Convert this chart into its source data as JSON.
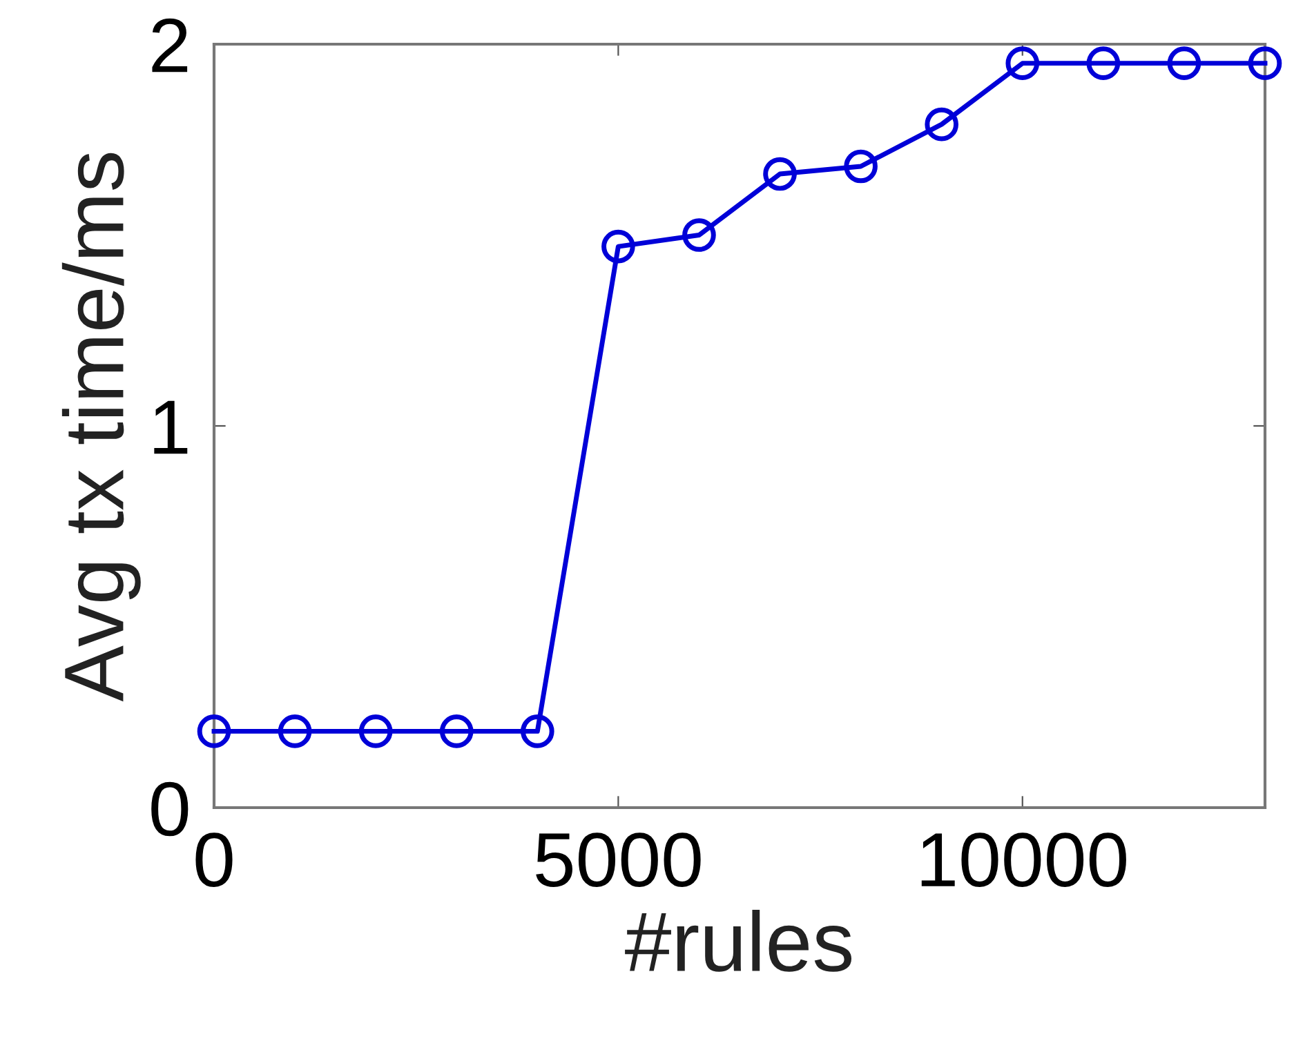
{
  "chart_data": {
    "type": "line",
    "xlabel": "#rules",
    "ylabel": "Avg tx time/ms",
    "x": [
      0,
      1000,
      2000,
      3000,
      4000,
      5000,
      6000,
      7000,
      8000,
      9000,
      10000,
      11000,
      12000,
      13000
    ],
    "series": [
      {
        "color": "#0000d8",
        "values": [
          0.2,
          0.2,
          0.2,
          0.2,
          0.2,
          1.47,
          1.5,
          1.66,
          1.68,
          1.79,
          1.95,
          1.95,
          1.95,
          1.95
        ]
      }
    ],
    "xlim": [
      0,
      13000
    ],
    "ylim": [
      0,
      2
    ],
    "xticks": [
      0,
      5000,
      10000
    ],
    "yticks": [
      0,
      1,
      2
    ],
    "marker": "circle",
    "line_style": "solid",
    "grid": false,
    "legend": false
  }
}
